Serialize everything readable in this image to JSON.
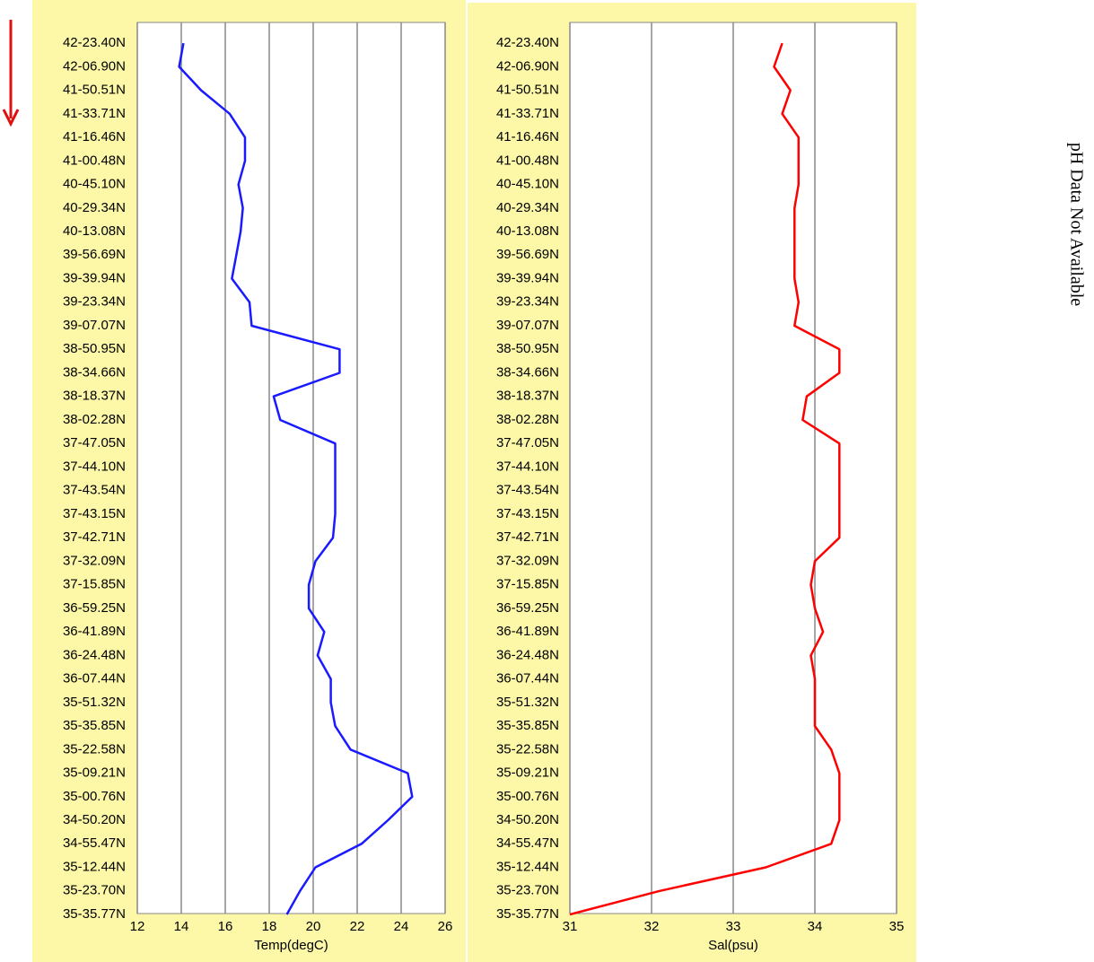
{
  "chart_data": [
    {
      "type": "line",
      "xlabel": "Temp(degC)",
      "categories": [
        "42-23.40N",
        "42-06.90N",
        "41-50.51N",
        "41-33.71N",
        "41-16.46N",
        "41-00.48N",
        "40-45.10N",
        "40-29.34N",
        "40-13.08N",
        "39-56.69N",
        "39-39.94N",
        "39-23.34N",
        "39-07.07N",
        "38-50.95N",
        "38-34.66N",
        "38-18.37N",
        "38-02.28N",
        "37-47.05N",
        "37-44.10N",
        "37-43.54N",
        "37-43.15N",
        "37-42.71N",
        "37-32.09N",
        "37-15.85N",
        "36-59.25N",
        "36-41.89N",
        "36-24.48N",
        "36-07.44N",
        "35-51.32N",
        "35-35.85N",
        "35-22.58N",
        "35-09.21N",
        "35-00.76N",
        "34-50.20N",
        "34-55.47N",
        "35-12.44N",
        "35-23.70N",
        "35-35.77N"
      ],
      "series": [
        {
          "name": "Temp",
          "color": "#1a1aff",
          "values": [
            14.1,
            13.9,
            14.9,
            16.2,
            16.9,
            16.9,
            16.6,
            16.8,
            16.7,
            16.5,
            16.3,
            17.1,
            17.2,
            21.2,
            21.2,
            18.2,
            18.5,
            21.0,
            21.0,
            21.0,
            21.0,
            20.9,
            20.1,
            19.8,
            19.8,
            20.5,
            20.2,
            20.8,
            20.8,
            21.0,
            21.7,
            24.3,
            24.5,
            23.4,
            22.2,
            20.1,
            19.4,
            18.8
          ]
        }
      ],
      "xlim": [
        12,
        26
      ],
      "xticks": [
        12,
        14,
        16,
        18,
        20,
        22,
        24,
        26
      ],
      "grid": true
    },
    {
      "type": "line",
      "xlabel": "Sal(psu)",
      "categories": [
        "42-23.40N",
        "42-06.90N",
        "41-50.51N",
        "41-33.71N",
        "41-16.46N",
        "41-00.48N",
        "40-45.10N",
        "40-29.34N",
        "40-13.08N",
        "39-56.69N",
        "39-39.94N",
        "39-23.34N",
        "39-07.07N",
        "38-50.95N",
        "38-34.66N",
        "38-18.37N",
        "38-02.28N",
        "37-47.05N",
        "37-44.10N",
        "37-43.54N",
        "37-43.15N",
        "37-42.71N",
        "37-32.09N",
        "37-15.85N",
        "36-59.25N",
        "36-41.89N",
        "36-24.48N",
        "36-07.44N",
        "35-51.32N",
        "35-35.85N",
        "35-22.58N",
        "35-09.21N",
        "35-00.76N",
        "34-50.20N",
        "34-55.47N",
        "35-12.44N",
        "35-23.70N",
        "35-35.77N"
      ],
      "series": [
        {
          "name": "Sal",
          "color": "#ff0000",
          "values": [
            33.6,
            33.5,
            33.7,
            33.6,
            33.8,
            33.8,
            33.8,
            33.75,
            33.75,
            33.75,
            33.75,
            33.8,
            33.75,
            34.3,
            34.3,
            33.9,
            33.85,
            34.3,
            34.3,
            34.3,
            34.3,
            34.3,
            34.0,
            33.95,
            34.0,
            34.1,
            33.95,
            34.0,
            34.0,
            34.0,
            34.2,
            34.3,
            34.3,
            34.3,
            34.2,
            33.4,
            32.1,
            31.0
          ]
        }
      ],
      "xlim": [
        31,
        35
      ],
      "xticks": [
        31,
        32,
        33,
        34,
        35
      ],
      "grid": true
    }
  ],
  "annotation": "pH Data Not Available"
}
